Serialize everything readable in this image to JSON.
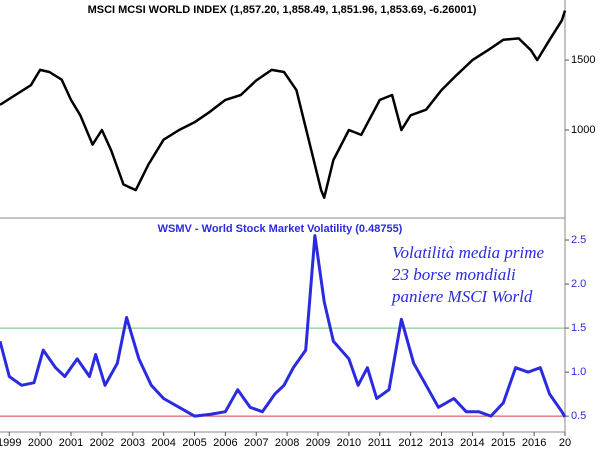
{
  "chart_data": [
    {
      "type": "line",
      "title": "MSCI MCSI WORLD INDEX (1,857.20, 1,858.49, 1,851.96, 1,853.69, -6.26001)",
      "color": "#000000",
      "xlim": [
        1998.7,
        2017.0
      ],
      "ylim": [
        370,
        1930
      ],
      "yticks": [
        1000,
        1500
      ],
      "x": [
        1998.7,
        1999.2,
        1999.7,
        2000.0,
        2000.3,
        2000.7,
        2001.0,
        2001.3,
        2001.7,
        2002.0,
        2002.3,
        2002.7,
        2003.1,
        2003.5,
        2004.0,
        2004.5,
        2005.0,
        2005.5,
        2006.0,
        2006.5,
        2007.0,
        2007.5,
        2007.9,
        2008.3,
        2008.7,
        2009.1,
        2009.2,
        2009.5,
        2010.0,
        2010.4,
        2011.0,
        2011.4,
        2011.7,
        2012.0,
        2012.5,
        2013.0,
        2013.5,
        2014.0,
        2014.5,
        2015.0,
        2015.5,
        2015.9,
        2016.1,
        2016.5,
        2016.9,
        2017.0
      ],
      "values": [
        1180,
        1250,
        1320,
        1430,
        1415,
        1360,
        1215,
        1105,
        895,
        1000,
        855,
        610,
        570,
        750,
        930,
        1000,
        1055,
        1130,
        1215,
        1250,
        1355,
        1430,
        1415,
        1285,
        930,
        570,
        515,
        785,
        1000,
        965,
        1215,
        1250,
        1000,
        1105,
        1145,
        1285,
        1395,
        1500,
        1570,
        1645,
        1655,
        1570,
        1500,
        1645,
        1785,
        1854
      ]
    },
    {
      "type": "line",
      "title": "WSMV - World Stock Market Volatility (0.48755)",
      "annotation": [
        "Volatilità media prime",
        "23 borse mondiali",
        "paniere MSCI World"
      ],
      "color": "#2a2ae0",
      "xlim": [
        1998.7,
        2017.0
      ],
      "ylim": [
        0.32,
        2.75
      ],
      "yticks": [
        0.5,
        {
          "value": 1,
          "label": "1.0"
        },
        1.5,
        {
          "value": 2,
          "label": "2.0"
        },
        2.5
      ],
      "reference_lines": [
        {
          "value": 1.5,
          "color": "#6cc46c"
        },
        {
          "value": 0.5,
          "color": "#d04040"
        }
      ],
      "xticks": [
        1999,
        2000,
        2001,
        2002,
        2003,
        2004,
        2005,
        2006,
        2007,
        2008,
        2009,
        2010,
        2011,
        2012,
        2013,
        2014,
        2015,
        2016,
        {
          "value": 2017,
          "label": "20"
        }
      ],
      "x": [
        1998.7,
        1999.0,
        1999.4,
        1999.8,
        2000.1,
        2000.5,
        2000.8,
        2001.2,
        2001.6,
        2001.8,
        2002.1,
        2002.5,
        2002.8,
        2003.2,
        2003.6,
        2004.0,
        2004.5,
        2005.0,
        2005.5,
        2006.0,
        2006.4,
        2006.8,
        2007.2,
        2007.6,
        2007.9,
        2008.2,
        2008.6,
        2008.9,
        2009.2,
        2009.5,
        2010.0,
        2010.3,
        2010.6,
        2010.9,
        2011.3,
        2011.7,
        2012.1,
        2012.5,
        2012.9,
        2013.4,
        2013.8,
        2014.2,
        2014.6,
        2015.0,
        2015.4,
        2015.8,
        2016.2,
        2016.5,
        2016.9,
        2017.0
      ],
      "values": [
        1.35,
        0.95,
        0.85,
        0.88,
        1.25,
        1.05,
        0.95,
        1.15,
        0.95,
        1.2,
        0.85,
        1.1,
        1.62,
        1.15,
        0.85,
        0.7,
        0.6,
        0.5,
        0.52,
        0.55,
        0.8,
        0.6,
        0.55,
        0.75,
        0.85,
        1.05,
        1.25,
        2.55,
        1.8,
        1.35,
        1.15,
        0.85,
        1.05,
        0.7,
        0.8,
        1.6,
        1.1,
        0.85,
        0.6,
        0.7,
        0.55,
        0.55,
        0.5,
        0.65,
        1.05,
        1.0,
        1.05,
        0.75,
        0.55,
        0.49
      ]
    }
  ]
}
